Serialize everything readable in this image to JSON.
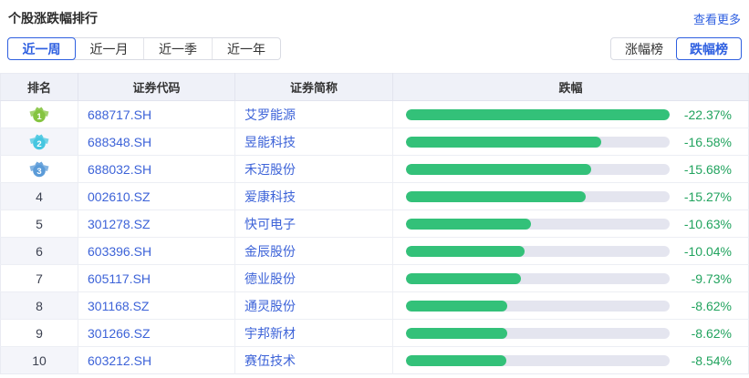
{
  "header": {
    "title": "个股涨跌幅排行",
    "more_link": "查看更多"
  },
  "period_tabs": [
    {
      "label": "近一周",
      "selected": true
    },
    {
      "label": "近一月",
      "selected": false
    },
    {
      "label": "近一季",
      "selected": false
    },
    {
      "label": "近一年",
      "selected": false
    }
  ],
  "board_toggle": [
    {
      "label": "涨幅榜",
      "selected": false
    },
    {
      "label": "跌幅榜",
      "selected": true
    }
  ],
  "colors": {
    "accent_blue": "#2e5fe0",
    "link_blue": "#3d63d8",
    "bar_green": "#33c179",
    "pct_green": "#21a35e",
    "bar_track": "#e4e5ef",
    "header_bg": "#eff1f8",
    "medal_colors": [
      "#85c440",
      "#45c6e0",
      "#5b9bd8"
    ]
  },
  "chart_data": {
    "type": "bar",
    "title": "个股涨跌幅排行 - 跌幅榜(近一周)",
    "categories": [
      "艾罗能源",
      "昱能科技",
      "禾迈股份",
      "爱康科技",
      "快可电子",
      "金辰股份",
      "德业股份",
      "通灵股份",
      "宇邦新材",
      "赛伍技术"
    ],
    "values": [
      -22.37,
      -16.58,
      -15.68,
      -15.27,
      -10.63,
      -10.04,
      -9.73,
      -8.62,
      -8.62,
      -8.54
    ],
    "xlabel": "",
    "ylabel": "跌幅 (%)",
    "legend": false,
    "grid": false
  },
  "table": {
    "columns": [
      "排名",
      "证券代码",
      "证券简称",
      "跌幅"
    ],
    "rows": [
      {
        "rank": "1",
        "code": "688717.SH",
        "name": "艾罗能源",
        "change": "-22.37%"
      },
      {
        "rank": "2",
        "code": "688348.SH",
        "name": "昱能科技",
        "change": "-16.58%"
      },
      {
        "rank": "3",
        "code": "688032.SH",
        "name": "禾迈股份",
        "change": "-15.68%"
      },
      {
        "rank": "4",
        "code": "002610.SZ",
        "name": "爱康科技",
        "change": "-15.27%"
      },
      {
        "rank": "5",
        "code": "301278.SZ",
        "name": "快可电子",
        "change": "-10.63%"
      },
      {
        "rank": "6",
        "code": "603396.SH",
        "name": "金辰股份",
        "change": "-10.04%"
      },
      {
        "rank": "7",
        "code": "605117.SH",
        "name": "德业股份",
        "change": "-9.73%"
      },
      {
        "rank": "8",
        "code": "301168.SZ",
        "name": "通灵股份",
        "change": "-8.62%"
      },
      {
        "rank": "9",
        "code": "301266.SZ",
        "name": "宇邦新材",
        "change": "-8.62%"
      },
      {
        "rank": "10",
        "code": "603212.SH",
        "name": "赛伍技术",
        "change": "-8.54%"
      }
    ]
  }
}
